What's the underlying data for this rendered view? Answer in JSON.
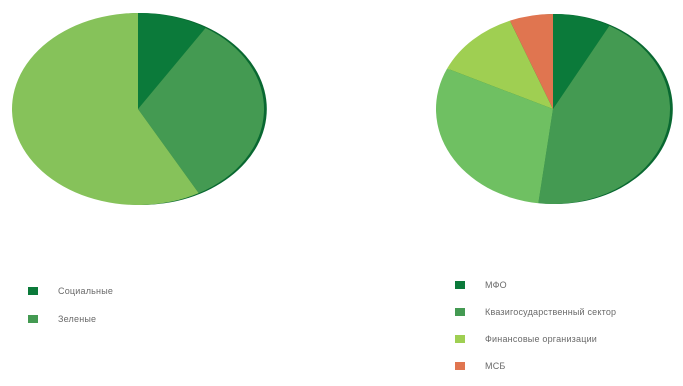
{
  "chart_data": [
    {
      "type": "pie",
      "title": "",
      "legend_position": "bottom-left",
      "slices": [
        {
          "label": "Социальные",
          "value": 9,
          "color": "#0b7a3a"
        },
        {
          "label": "Зеленые",
          "value": 33,
          "color": "#449a52"
        },
        {
          "label": "",
          "value": 58,
          "color": "#86c25a"
        }
      ],
      "legend": [
        {
          "label": "Социальные",
          "color": "#0b7a3a"
        },
        {
          "label": "Зеленые",
          "color": "#449a52"
        }
      ]
    },
    {
      "type": "pie",
      "title": "",
      "legend_position": "bottom-right",
      "slices": [
        {
          "label": "МФО",
          "value": 8,
          "color": "#0b7a3a"
        },
        {
          "label": "Квазигосударственный сектор",
          "value": 44,
          "color": "#449a52"
        },
        {
          "label": "",
          "value": 30,
          "color": "#6fc062"
        },
        {
          "label": "Финансовые организации",
          "value": 12,
          "color": "#9fcf52"
        },
        {
          "label": "МСБ",
          "value": 6,
          "color": "#e07550"
        }
      ],
      "legend": [
        {
          "label": "МФО",
          "color": "#0b7a3a"
        },
        {
          "label": "Квазигосударственный сектор",
          "color": "#449a52"
        },
        {
          "label": "Финансовые организации",
          "color": "#9fcf52"
        },
        {
          "label": "МСБ",
          "color": "#e07550"
        }
      ]
    }
  ]
}
